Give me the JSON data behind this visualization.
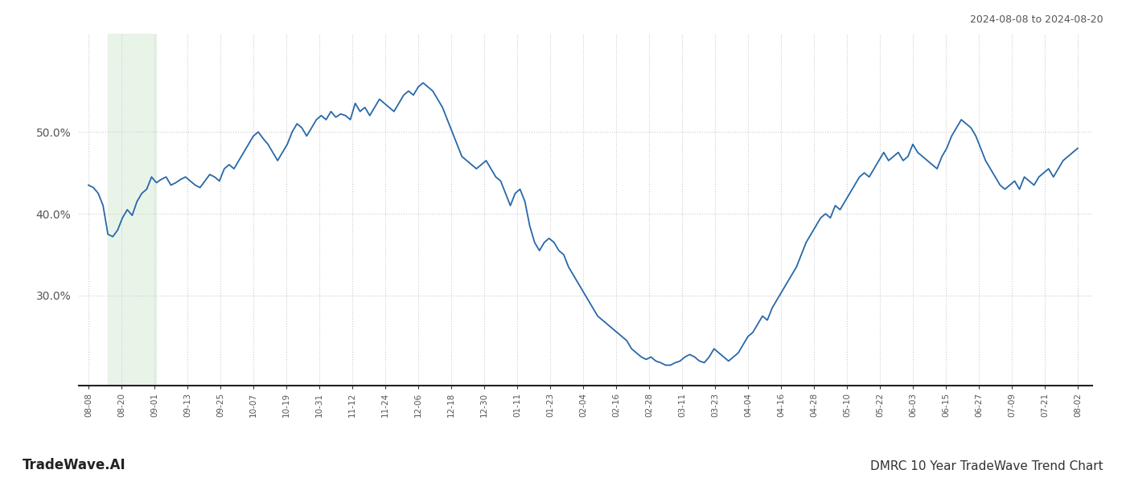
{
  "title_top_right": "2024-08-08 to 2024-08-20",
  "title_bottom_left": "TradeWave.AI",
  "title_bottom_right": "DMRC 10 Year TradeWave Trend Chart",
  "line_color": "#2868a8",
  "line_width": 1.3,
  "highlight_color": "#e0f0e0",
  "highlight_alpha": 0.7,
  "background_color": "#ffffff",
  "grid_color": "#cccccc",
  "grid_style": ":",
  "yticks": [
    30.0,
    40.0,
    50.0
  ],
  "ylim": [
    19,
    62
  ],
  "x_tick_labels": [
    "08-08",
    "08-20",
    "09-01",
    "09-13",
    "09-25",
    "10-07",
    "10-19",
    "10-31",
    "11-12",
    "11-24",
    "12-06",
    "12-18",
    "12-30",
    "01-11",
    "01-23",
    "02-04",
    "02-16",
    "02-28",
    "03-11",
    "03-23",
    "04-04",
    "04-16",
    "04-28",
    "05-10",
    "05-22",
    "06-03",
    "06-15",
    "06-27",
    "07-09",
    "07-21",
    "08-02"
  ],
  "data_points": [
    43.5,
    43.2,
    42.5,
    41.0,
    37.5,
    37.2,
    38.0,
    39.5,
    40.5,
    39.8,
    41.5,
    42.5,
    43.0,
    44.5,
    43.8,
    44.2,
    44.5,
    43.5,
    43.8,
    44.2,
    44.5,
    44.0,
    43.5,
    43.2,
    44.0,
    44.8,
    44.5,
    44.0,
    45.5,
    46.0,
    45.5,
    46.5,
    47.5,
    48.5,
    49.5,
    50.0,
    49.2,
    48.5,
    47.5,
    46.5,
    47.5,
    48.5,
    50.0,
    51.0,
    50.5,
    49.5,
    50.5,
    51.5,
    52.0,
    51.5,
    52.5,
    51.8,
    52.2,
    52.0,
    51.5,
    53.5,
    52.5,
    53.0,
    52.0,
    53.0,
    54.0,
    53.5,
    53.0,
    52.5,
    53.5,
    54.5,
    55.0,
    54.5,
    55.5,
    56.0,
    55.5,
    55.0,
    54.0,
    53.0,
    51.5,
    50.0,
    48.5,
    47.0,
    46.5,
    46.0,
    45.5,
    46.0,
    46.5,
    45.5,
    44.5,
    44.0,
    42.5,
    41.0,
    42.5,
    43.0,
    41.5,
    38.5,
    36.5,
    35.5,
    36.5,
    37.0,
    36.5,
    35.5,
    35.0,
    33.5,
    32.5,
    31.5,
    30.5,
    29.5,
    28.5,
    27.5,
    27.0,
    26.5,
    26.0,
    25.5,
    25.0,
    24.5,
    23.5,
    23.0,
    22.5,
    22.2,
    22.5,
    22.0,
    21.8,
    21.5,
    21.5,
    21.8,
    22.0,
    22.5,
    22.8,
    22.5,
    22.0,
    21.8,
    22.5,
    23.5,
    23.0,
    22.5,
    22.0,
    22.5,
    23.0,
    24.0,
    25.0,
    25.5,
    26.5,
    27.5,
    27.0,
    28.5,
    29.5,
    30.5,
    31.5,
    32.5,
    33.5,
    35.0,
    36.5,
    37.5,
    38.5,
    39.5,
    40.0,
    39.5,
    41.0,
    40.5,
    41.5,
    42.5,
    43.5,
    44.5,
    45.0,
    44.5,
    45.5,
    46.5,
    47.5,
    46.5,
    47.0,
    47.5,
    46.5,
    47.0,
    48.5,
    47.5,
    47.0,
    46.5,
    46.0,
    45.5,
    47.0,
    48.0,
    49.5,
    50.5,
    51.5,
    51.0,
    50.5,
    49.5,
    48.0,
    46.5,
    45.5,
    44.5,
    43.5,
    43.0,
    43.5,
    44.0,
    43.0,
    44.5,
    44.0,
    43.5,
    44.5,
    45.0,
    45.5,
    44.5,
    45.5,
    46.5,
    47.0,
    47.5,
    48.0
  ]
}
